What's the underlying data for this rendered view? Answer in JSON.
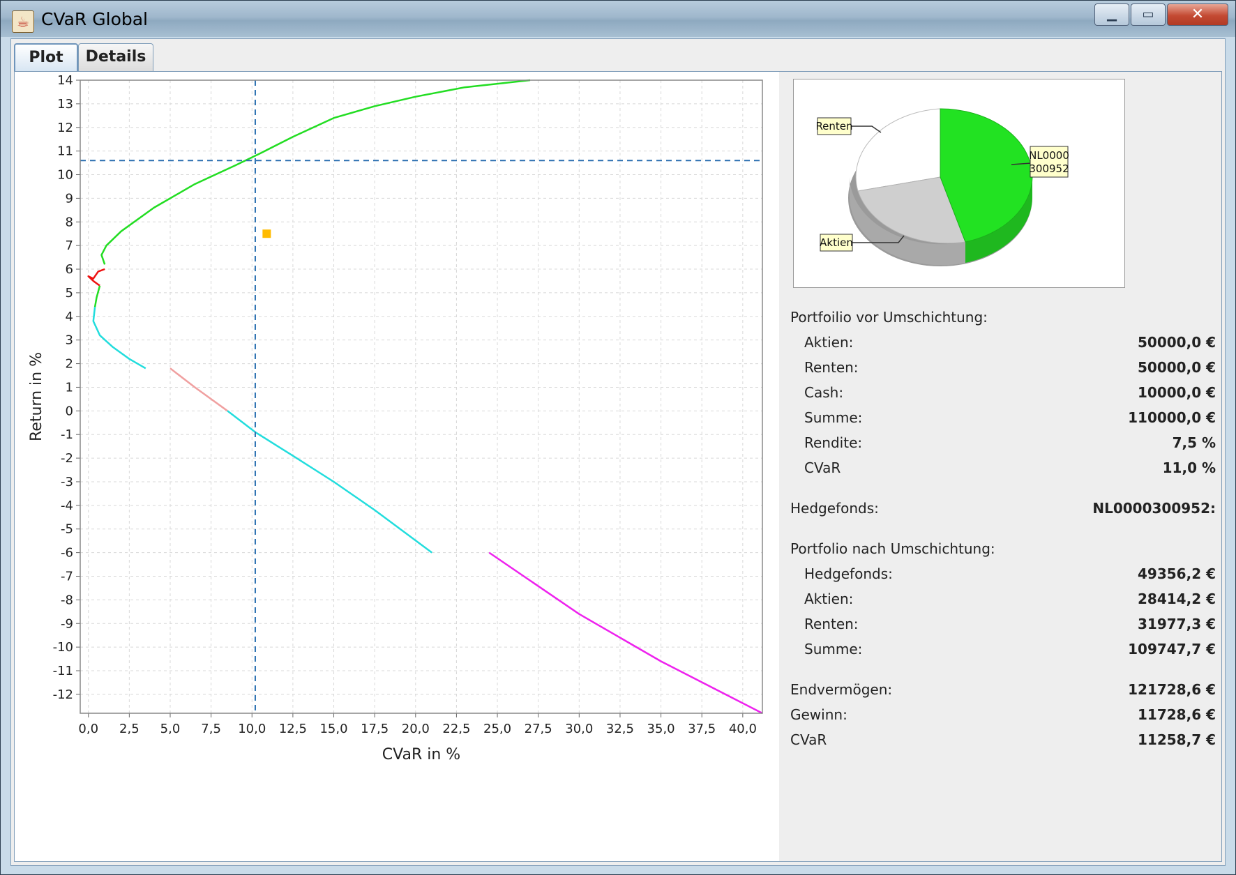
{
  "window": {
    "title": "CVaR Global",
    "icon": "java-icon"
  },
  "tabs": [
    {
      "label": "Plot",
      "selected": true
    },
    {
      "label": "Details",
      "selected": false
    }
  ],
  "chart_data": {
    "type": "line",
    "xlabel": "CVaR in %",
    "ylabel": "Return in %",
    "xlim": [
      -0.5,
      41.2
    ],
    "ylim": [
      -12.8,
      14
    ],
    "xticks": [
      "0,0",
      "2,5",
      "5,0",
      "7,5",
      "10,0",
      "12,5",
      "15,0",
      "17,5",
      "20,0",
      "22,5",
      "25,0",
      "27,5",
      "30,0",
      "32,5",
      "35,0",
      "37,5",
      "40,0"
    ],
    "xtick_values": [
      0,
      2.5,
      5,
      7.5,
      10,
      12.5,
      15,
      17.5,
      20,
      22.5,
      25,
      27.5,
      30,
      32.5,
      35,
      37.5,
      40
    ],
    "yticks": [
      14,
      13,
      12,
      11,
      10,
      9,
      8,
      7,
      6,
      5,
      4,
      3,
      2,
      1,
      0,
      -1,
      -2,
      -3,
      -4,
      -5,
      -6,
      -7,
      -8,
      -9,
      -10,
      -11,
      -12
    ],
    "grid": true,
    "series": [
      {
        "color": "#22dd22",
        "points": [
          [
            1.0,
            6.2
          ],
          [
            0.8,
            6.6
          ],
          [
            1.1,
            7.0
          ],
          [
            2.0,
            7.6
          ],
          [
            4.0,
            8.6
          ],
          [
            6.5,
            9.6
          ],
          [
            9.0,
            10.4
          ],
          [
            10.5,
            10.9
          ],
          [
            12.5,
            11.6
          ],
          [
            15.0,
            12.4
          ],
          [
            17.5,
            12.9
          ],
          [
            20.0,
            13.3
          ],
          [
            23.0,
            13.7
          ],
          [
            27.0,
            14.0
          ]
        ]
      },
      {
        "color": "#ee1111",
        "points": [
          [
            1.0,
            6.0
          ],
          [
            0.6,
            5.9
          ],
          [
            0.3,
            5.6
          ],
          [
            0.0,
            5.7
          ],
          [
            0.3,
            5.5
          ],
          [
            0.7,
            5.3
          ]
        ]
      },
      {
        "color": "#22dd22",
        "points": [
          [
            0.7,
            5.3
          ],
          [
            0.5,
            4.8
          ],
          [
            0.4,
            4.4
          ]
        ]
      },
      {
        "color": "#22dddd",
        "points": [
          [
            0.4,
            4.4
          ],
          [
            0.3,
            3.8
          ],
          [
            0.7,
            3.2
          ],
          [
            1.5,
            2.7
          ],
          [
            2.5,
            2.2
          ],
          [
            3.5,
            1.8
          ]
        ]
      },
      {
        "color": "#f0a0a0",
        "points": [
          [
            5.0,
            1.8
          ],
          [
            6.5,
            1.0
          ],
          [
            8.5,
            0.0
          ]
        ]
      },
      {
        "color": "#22dddd",
        "points": [
          [
            8.5,
            0.0
          ],
          [
            10.2,
            -0.9
          ],
          [
            12.5,
            -1.9
          ],
          [
            15.0,
            -3.0
          ],
          [
            17.5,
            -4.2
          ],
          [
            21.0,
            -6.0
          ]
        ]
      },
      {
        "color": "#ee22ee",
        "points": [
          [
            24.5,
            -6.0
          ],
          [
            30.0,
            -8.6
          ],
          [
            35.0,
            -10.6
          ],
          [
            41.2,
            -12.8
          ]
        ]
      }
    ],
    "crosshair": {
      "x": 10.2,
      "y": 10.6
    },
    "marker": {
      "x": 10.9,
      "y": 7.5,
      "color": "#ffbb00"
    }
  },
  "pie": {
    "slices": [
      {
        "label": "NL0000\n300952",
        "label_lines": [
          "NL0000",
          "300952"
        ],
        "fraction": 0.45,
        "color": "#22dd22"
      },
      {
        "label": "Aktien",
        "fraction": 0.26,
        "color": "#cccccc"
      },
      {
        "label": "Renten",
        "fraction": 0.29,
        "color": "#ffffff"
      }
    ]
  },
  "details": {
    "before_header": "Portfoilio vor Umschichtung:",
    "before": [
      {
        "label": "Aktien:",
        "value": "50000,0 €"
      },
      {
        "label": "Renten:",
        "value": "50000,0 €"
      },
      {
        "label": "Cash:",
        "value": "10000,0 €"
      },
      {
        "label": "Summe:",
        "value": "110000,0 €"
      },
      {
        "label": "Rendite:",
        "value": "7,5 %"
      },
      {
        "label": "CVaR",
        "value": "11,0 %"
      }
    ],
    "hedge_label": "Hedgefonds:",
    "hedge_value": "NL0000300952:",
    "after_header": "Portfolio nach Umschichtung:",
    "after": [
      {
        "label": "Hedgefonds:",
        "value": "49356,2 €"
      },
      {
        "label": "Aktien:",
        "value": "28414,2 €"
      },
      {
        "label": "Renten:",
        "value": "31977,3 €"
      },
      {
        "label": "Summe:",
        "value": "109747,7 €"
      }
    ],
    "totals": [
      {
        "label": "Endvermögen:",
        "value": "121728,6 €"
      },
      {
        "label": "Gewinn:",
        "value": "11728,6 €"
      },
      {
        "label": "CVaR",
        "value": "11258,7 €"
      }
    ]
  }
}
